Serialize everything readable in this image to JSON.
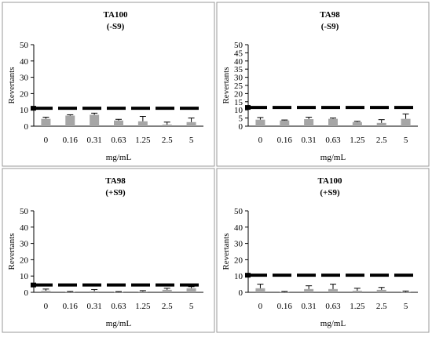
{
  "chart_data": [
    {
      "type": "bar",
      "title": "TA100",
      "subtitle": "(-S9)",
      "xlabel": "mg/mL",
      "ylabel": "Revertants",
      "categories": [
        "0",
        "0.16",
        "0.31",
        "0.63",
        "1.25",
        "2.5",
        "5"
      ],
      "ylim": [
        0,
        50
      ],
      "yticks": [
        "0",
        "10",
        "20",
        "30",
        "40",
        "50"
      ],
      "series": [
        {
          "values": [
            4.5,
            6.5,
            7.0,
            3.5,
            3.0,
            1.0,
            2.5
          ],
          "errors": [
            1.0,
            0.5,
            1.0,
            0.7,
            3.0,
            1.5,
            2.5
          ]
        }
      ],
      "reference_line": 11,
      "grid": false,
      "legend": "none"
    },
    {
      "type": "bar",
      "title": "TA98",
      "subtitle": "(-S9)",
      "xlabel": "mg/mL",
      "ylabel": "Revertants",
      "categories": [
        "0",
        "0.16",
        "0.31",
        "0.63",
        "1.25",
        "2.5",
        "5"
      ],
      "ylim": [
        0,
        50
      ],
      "yticks": [
        "0",
        "5",
        "10",
        "15",
        "20",
        "25",
        "30",
        "35",
        "40",
        "45",
        "50"
      ],
      "series": [
        {
          "values": [
            4.0,
            3.5,
            4.3,
            4.5,
            2.5,
            2.0,
            4.5
          ],
          "errors": [
            1.3,
            0.3,
            1.2,
            0.5,
            0.5,
            2.0,
            3.0
          ]
        }
      ],
      "reference_line": 11.5,
      "grid": false,
      "legend": "none"
    },
    {
      "type": "bar",
      "title": "TA98",
      "subtitle": "(+S9)",
      "xlabel": "mg/mL",
      "ylabel": "Revertants",
      "categories": [
        "0",
        "0.16",
        "0.31",
        "0.63",
        "1.25",
        "2.5",
        "5"
      ],
      "ylim": [
        0,
        50
      ],
      "yticks": [
        "0",
        "10",
        "20",
        "30",
        "40",
        "50"
      ],
      "series": [
        {
          "values": [
            1.0,
            0.3,
            0.7,
            0.2,
            0.5,
            1.5,
            2.5
          ],
          "errors": [
            1.0,
            0.3,
            1.0,
            0.3,
            0.5,
            1.0,
            1.0
          ]
        }
      ],
      "reference_line": 4.5,
      "grid": false,
      "legend": "none"
    },
    {
      "type": "bar",
      "title": "TA100",
      "subtitle": "(+S9)",
      "xlabel": "mg/mL",
      "ylabel": "Revertants",
      "categories": [
        "0",
        "0.16",
        "0.31",
        "0.63",
        "1.25",
        "2.5",
        "5"
      ],
      "ylim": [
        0,
        50
      ],
      "yticks": [
        "0",
        "10",
        "20",
        "30",
        "40",
        "50"
      ],
      "series": [
        {
          "values": [
            2.5,
            0.3,
            2.0,
            2.0,
            1.0,
            1.5,
            0.3
          ],
          "errors": [
            2.5,
            0.3,
            2.0,
            3.0,
            1.5,
            1.5,
            0.5
          ]
        }
      ],
      "reference_line": 10.5,
      "grid": false,
      "legend": "none"
    }
  ],
  "colors": {
    "bar": "#a6a6a6",
    "reference_line": "#000000",
    "axis": "#000000",
    "panel_border": "#999999"
  }
}
